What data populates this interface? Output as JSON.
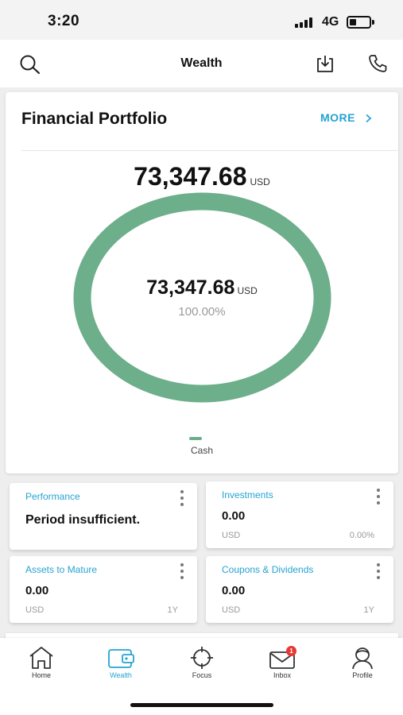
{
  "status_bar": {
    "time": "3:20",
    "network": "4G",
    "icons": [
      "signal-icon",
      "battery-icon"
    ]
  },
  "header": {
    "title": "Wealth",
    "icons": [
      "search-icon",
      "download-icon",
      "phone-icon"
    ]
  },
  "portfolio": {
    "title": "Financial Portfolio",
    "more_label": "MORE",
    "total_amount": "73,347.68",
    "total_currency": "USD",
    "center_amount": "73,347.68",
    "center_currency": "USD",
    "center_percent": "100.00%",
    "legend_label": "Cash",
    "ring_color": "#6dae8b",
    "accent_color": "#25a3d3"
  },
  "chart_data": {
    "type": "pie",
    "categories": [
      "Cash"
    ],
    "values": [
      73347.68
    ],
    "percentages": [
      100.0
    ],
    "legend_placement": "bottom",
    "colors": [
      "#6dae8b"
    ]
  },
  "tiles": {
    "performance": {
      "label": "Performance",
      "value": "Period insufficient."
    },
    "investments": {
      "label": "Investments",
      "value": "0.00",
      "currency": "USD",
      "extra": "0.00%"
    },
    "assets": {
      "label": "Assets to Mature",
      "value": "0.00",
      "currency": "USD",
      "extra": "1Y"
    },
    "coupons": {
      "label": "Coupons & Dividends",
      "value": "0.00",
      "currency": "USD",
      "extra": "1Y"
    }
  },
  "bottom_nav": {
    "items": [
      {
        "label": "Home",
        "icon": "home-icon",
        "active": false
      },
      {
        "label": "Wealth",
        "icon": "wallet-icon",
        "active": true
      },
      {
        "label": "Focus",
        "icon": "crosshair-icon",
        "active": false
      },
      {
        "label": "Inbox",
        "icon": "mail-icon",
        "active": false,
        "badge": "1"
      },
      {
        "label": "Profile",
        "icon": "profile-icon",
        "active": false
      }
    ]
  }
}
